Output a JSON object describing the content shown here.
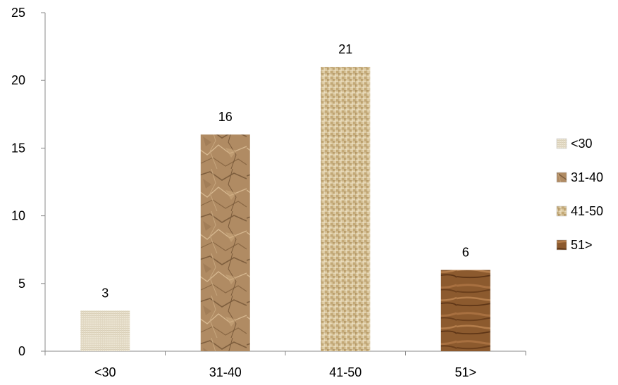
{
  "chart_data": {
    "type": "bar",
    "categories": [
      "<30",
      "31-40",
      "41-50",
      "51>"
    ],
    "values": [
      3,
      16,
      21,
      6
    ],
    "data_labels": [
      "3",
      "16",
      "21",
      "6"
    ],
    "ylim": [
      0,
      25
    ],
    "yticks": [
      0,
      5,
      10,
      15,
      20,
      25
    ],
    "ytick_labels": [
      "0",
      "5",
      "10",
      "15",
      "20",
      "25"
    ],
    "grid": false,
    "legend": {
      "placement": "right",
      "entries": [
        "<30",
        "31-40",
        "41-50",
        "51>"
      ]
    },
    "bar_colors": [
      "#e9e1cd",
      "#b08a62",
      "#d8c49a",
      "#8a5428"
    ],
    "bar_textures": [
      "linen",
      "crumpled-paper",
      "woven-canvas",
      "wood-grain"
    ]
  }
}
